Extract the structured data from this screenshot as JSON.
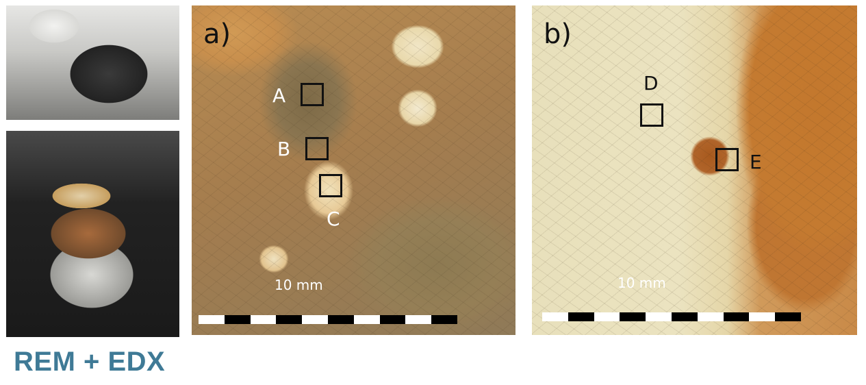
{
  "caption": "REM + EDX",
  "panel_a": {
    "label": "a)",
    "markers": [
      "A",
      "B",
      "C"
    ],
    "scale_label": "10 mm",
    "scale_segments": 10
  },
  "panel_b": {
    "label": "b)",
    "markers": [
      "D",
      "E"
    ],
    "scale_label": "10 mm",
    "scale_segments": 10
  },
  "colors": {
    "caption": "#3f7a96",
    "marker_dark": "#111111",
    "marker_light": "#ffffff"
  }
}
